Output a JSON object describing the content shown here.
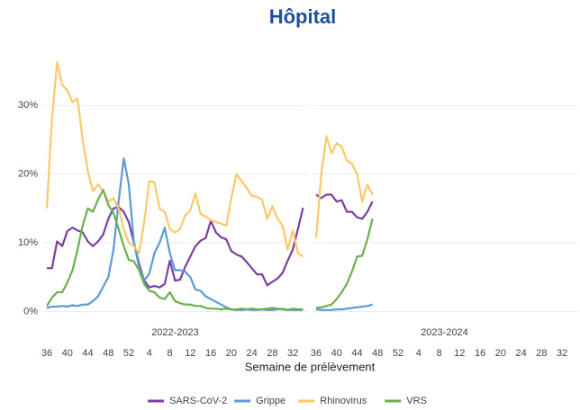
{
  "chart_data": {
    "type": "line",
    "title": "Hôpital",
    "x_label": "Semaine de prélèvement",
    "categories": [
      36,
      null,
      null,
      null,
      40,
      null,
      null,
      null,
      44,
      null,
      null,
      null,
      48,
      null,
      null,
      null,
      52,
      null,
      null,
      null,
      4,
      null,
      null,
      null,
      8,
      null,
      null,
      null,
      12,
      null,
      null,
      null,
      16,
      null,
      null,
      null,
      20,
      null,
      null,
      null,
      24,
      null,
      null,
      null,
      28,
      null,
      null,
      null,
      32,
      null,
      null,
      null
    ],
    "ylim": [
      -1,
      37.5
    ],
    "yticks": [
      {
        "value": 0,
        "label": "0%"
      },
      {
        "value": 10,
        "label": "10%"
      },
      {
        "value": 20,
        "label": "20%"
      },
      {
        "value": 30,
        "label": "30%"
      }
    ],
    "grid": true,
    "legend": "bottom",
    "series": [
      {
        "name": "SARS-CoV-2",
        "color": "#7b3fa0"
      },
      {
        "name": "Grippe",
        "color": "#5b9bd5"
      },
      {
        "name": "Rhinovirus",
        "color": "#fdc86a"
      },
      {
        "name": "VRS",
        "color": "#6ab04c"
      }
    ],
    "panels": [
      {
        "label": "2022-2023",
        "values": [
          [
            6.3,
            6.3,
            10.2,
            9.5,
            11.7,
            12.2,
            11.8,
            11.5,
            10.2,
            9.5,
            10.2,
            11.2,
            13.5,
            15,
            15.2,
            14.5,
            13,
            10,
            7,
            4.5,
            3.5,
            3.7,
            3.5,
            4,
            7.4,
            4.5,
            4.6,
            6.5,
            8,
            9.5,
            10.3,
            10.7,
            13.2,
            11.5,
            10.8,
            10.5,
            8.8,
            8.3,
            8,
            7.2,
            6.3,
            5.4,
            5.4,
            3.8,
            4.3,
            4.8,
            5.6,
            7.4,
            9,
            12,
            15.1,
            null
          ],
          [
            0.5,
            0.7,
            0.7,
            0.8,
            0.7,
            0.9,
            0.8,
            1,
            1,
            1.5,
            2.2,
            3.6,
            5,
            9,
            16,
            22.3,
            18.5,
            10,
            6.5,
            4.5,
            5.5,
            8.5,
            10,
            12.2,
            8.5,
            6,
            6,
            5.8,
            5,
            3.2,
            3,
            2.2,
            1.8,
            1.4,
            1,
            0.6,
            0.3,
            0.2,
            0.2,
            0.3,
            0.2,
            0.2,
            0.3,
            0.2,
            0.2,
            0.3,
            0.4,
            0.2,
            0.2,
            0.2,
            0.2,
            null
          ],
          [
            15,
            28,
            36.3,
            33,
            32.2,
            30.5,
            31,
            25,
            20.5,
            17.5,
            18.5,
            17.5,
            16,
            16.5,
            15,
            12,
            10,
            9.5,
            8.5,
            13,
            19,
            18.8,
            15,
            14.5,
            12,
            11.5,
            12,
            14,
            14.7,
            17.2,
            14.2,
            13.8,
            13.3,
            13,
            12.8,
            12.5,
            16.5,
            20,
            19,
            18,
            16.8,
            16.7,
            16.3,
            13.5,
            15.3,
            13.5,
            12.5,
            9,
            11.8,
            8.5,
            8,
            null
          ],
          [
            0.8,
            2,
            2.8,
            2.8,
            4.2,
            6,
            9,
            12.5,
            15,
            14.5,
            16.3,
            17.7,
            15.5,
            14.3,
            12,
            9.5,
            7.5,
            7.3,
            6,
            4,
            3,
            2.8,
            2,
            1.8,
            2.8,
            1.5,
            1.2,
            1,
            1,
            0.8,
            0.8,
            0.5,
            0.4,
            0.4,
            0.3,
            0.4,
            0.3,
            0.3,
            0.4,
            0.3,
            0.4,
            0.3,
            0.3,
            0.4,
            0.5,
            0.4,
            0.3,
            0.2,
            0.4,
            0.3,
            0.3,
            null
          ]
        ]
      },
      {
        "label": "2023-2024",
        "values": [
          [
            17,
            16.5,
            17,
            17,
            16,
            16.2,
            14.5,
            14.5,
            13.7,
            13.5,
            14.5,
            16,
            null,
            null,
            null,
            null,
            null,
            null,
            null,
            null,
            null,
            null,
            null,
            null,
            null,
            null,
            null,
            null,
            null,
            null,
            null,
            null,
            null,
            null,
            null,
            null,
            null,
            null,
            null,
            null,
            null,
            null,
            null,
            null,
            null,
            null,
            null,
            null,
            null,
            null,
            null,
            null
          ],
          [
            0.3,
            0.2,
            0.2,
            0.2,
            0.3,
            0.3,
            0.4,
            0.5,
            0.6,
            0.7,
            0.8,
            1,
            null,
            null,
            null,
            null,
            null,
            null,
            null,
            null,
            null,
            null,
            null,
            null,
            null,
            null,
            null,
            null,
            null,
            null,
            null,
            null,
            null,
            null,
            null,
            null,
            null,
            null,
            null,
            null,
            null,
            null,
            null,
            null,
            null,
            null,
            null,
            null,
            null,
            null,
            null,
            null
          ],
          [
            10.7,
            20,
            25.5,
            23,
            24.5,
            24,
            22,
            21.5,
            20,
            16,
            18.5,
            17,
            null,
            null,
            null,
            null,
            null,
            null,
            null,
            null,
            null,
            null,
            null,
            null,
            null,
            null,
            null,
            null,
            null,
            null,
            null,
            null,
            null,
            null,
            null,
            null,
            null,
            null,
            null,
            null,
            null,
            null,
            null,
            null,
            null,
            null,
            null,
            null,
            null,
            null,
            null,
            null
          ],
          [
            0.5,
            0.6,
            0.8,
            1,
            1.8,
            2.8,
            4,
            5.8,
            8,
            8.1,
            10.5,
            13.5,
            null,
            null,
            null,
            null,
            null,
            null,
            null,
            null,
            null,
            null,
            null,
            null,
            null,
            null,
            null,
            null,
            null,
            null,
            null,
            null,
            null,
            null,
            null,
            null,
            null,
            null,
            null,
            null,
            null,
            null,
            null,
            null,
            null,
            null,
            null,
            null,
            null,
            null,
            null,
            null
          ]
        ]
      }
    ]
  }
}
